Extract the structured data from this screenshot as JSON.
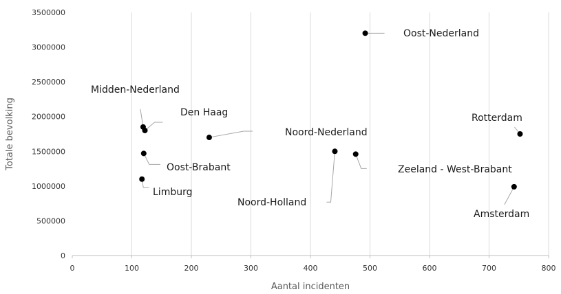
{
  "chart_data": {
    "type": "scatter",
    "xlabel": "Aantal incidenten",
    "ylabel": "Totale bevolking",
    "xlim": [
      0,
      800
    ],
    "ylim": [
      0,
      3500000
    ],
    "x_ticks": [
      "0",
      "100",
      "200",
      "300",
      "400",
      "500",
      "600",
      "700",
      "800"
    ],
    "y_ticks": [
      "0",
      "500000",
      "1000000",
      "1500000",
      "2000000",
      "2500000",
      "3000000",
      "3500000"
    ],
    "grid": "vertical",
    "marker_color": "#000000",
    "points": [
      {
        "label": "Oost-Nederland",
        "x": 492,
        "y": 3200000
      },
      {
        "label": "Midden-Nederland",
        "x": 119,
        "y": 1850000
      },
      {
        "label": "Den Haag",
        "x": 122,
        "y": 1800000
      },
      {
        "label": "Rotterdam",
        "x": 752,
        "y": 1750000
      },
      {
        "label": "Noord-Nederland",
        "x": 230,
        "y": 1700000
      },
      {
        "label": "Noord-Holland",
        "x": 441,
        "y": 1500000
      },
      {
        "label": "Oost-Brabant",
        "x": 120,
        "y": 1470000
      },
      {
        "label": "Zeeland - West-Brabant",
        "x": 476,
        "y": 1460000
      },
      {
        "label": "Limburg",
        "x": 117,
        "y": 1100000
      },
      {
        "label": "Amsterdam",
        "x": 742,
        "y": 990000
      }
    ]
  }
}
